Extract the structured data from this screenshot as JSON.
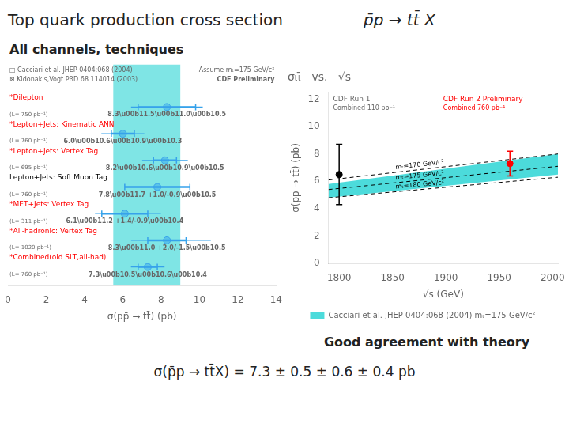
{
  "chart_data": [
    {
      "type": "scatter",
      "title": "Top quark production cross section",
      "subtitle": "All channels, techniques",
      "categories": [
        "*Dilepton",
        "*Lepton+Jets: Kinematic ANN",
        "*Lepton+Jets: Vertex Tag",
        "Lepton+Jets: Soft Muon Tag",
        "*MET+Jets: Vertex Tag",
        "*All-hadronic: Vertex Tag",
        "*Combined(old SLT,all-had)"
      ],
      "category_colors": [
        "red",
        "red",
        "red",
        "black",
        "red",
        "red",
        "red"
      ],
      "sublabels": [
        "(L= 750 pb⁻¹)",
        "(L= 760 pb⁻¹)",
        "(L= 695 pb⁻¹)",
        "(L= 760 pb⁻¹)",
        "(L= 311 pb⁻¹)",
        "(L= 1020 pb⁻¹)",
        "(L= 760 pb⁻¹)"
      ],
      "values": [
        8.3,
        6.0,
        8.2,
        7.8,
        6.1,
        8.3,
        7.3
      ],
      "value_labels": [
        "8.3\\u00b11.5\\u00b11.0\\u00b10.5",
        "6.0\\u00b10.6\\u00b10.9\\u00b10.3",
        "8.2\\u00b10.6\\u00b10.9\\u00b10.5",
        "7.8\\u00b11.7 +1.0/-0.9\\u00b10.5",
        "6.1\\u00b11.2 +1.4/-0.9\\u00b10.4",
        "8.3\\u00b11.0 +2.0/-1.5\\u00b10.5",
        "7.3\\u00b10.5\\u00b10.6\\u00b10.4"
      ],
      "stat_err": [
        1.5,
        0.6,
        0.6,
        1.7,
        1.2,
        1.0,
        0.5
      ],
      "total_err_up": [
        1.8708286933869707,
        1.1224972160321824,
        1.1916375287812984,
        2.0346989949375804,
        1.886796226411321,
        2.29128784747792,
        0.8774964387392123
      ],
      "total_err_dn": [
        1.8708286933869707,
        1.1224972160321824,
        1.1916375287812984,
        1.9874606914351791,
        1.5524174696260025,
        1.8708286933869707,
        0.8774964387392123
      ],
      "band": {
        "x": [
          5.5,
          9.0
        ],
        "color": "#00CCCC"
      },
      "xlabel": "σ(pp̄ → tt̄) (pb)",
      "xlim": [
        0,
        14
      ],
      "xticks": [
        0,
        2,
        4,
        6,
        8,
        10,
        12,
        14
      ],
      "grid": false,
      "annotations": [
        "p̄p → tt̄ X",
        "□ Cacciari et al. JHEP 0404:068 (2004)",
        "⊠ Kidonakis,Vogt PRD 68 114014 (2003)",
        "Assume mₜ=175 GeV/c²",
        "CDF Preliminary"
      ]
    },
    {
      "type": "scatter",
      "title": "σₜₜ̄   vs.   √s",
      "xlabel": "√s (GeV)",
      "ylabel": "σ(pp̄ → tt̄) (pb)",
      "xlim": [
        1790,
        2005
      ],
      "ylim": [
        0,
        12.5
      ],
      "xticks": [
        1800,
        1850,
        1900,
        1950,
        2000
      ],
      "yticks": [
        0,
        2,
        4,
        6,
        8,
        10,
        12
      ],
      "grid": false,
      "legend": "bottom",
      "band": {
        "name": "Cacciari et al. JHEP 0404:068 (2004) mₜ=175 GeV/c²",
        "x": [
          1790,
          2005
        ],
        "low": [
          4.8,
          6.5
        ],
        "high": [
          5.8,
          8.0
        ],
        "color": "#00CCCC"
      },
      "lines": [
        {
          "name": "mₜ=170 GeV/c²",
          "x": [
            1790,
            2005
          ],
          "values": [
            6.1,
            8.0
          ],
          "color": "black",
          "line_style": "dashed"
        },
        {
          "name": "mₜ=175 GeV/c²",
          "x": [
            1790,
            2005
          ],
          "values": [
            5.4,
            7.1
          ],
          "color": "black",
          "line_style": "dashed"
        },
        {
          "name": "mₜ=180 GeV/c²",
          "x": [
            1790,
            2005
          ],
          "values": [
            4.8,
            6.3
          ],
          "color": "black",
          "line_style": "dashed"
        }
      ],
      "points": [
        {
          "x": 1800,
          "y": 6.5,
          "err_up": 2.2,
          "err_dn": 2.2,
          "color": "black"
        },
        {
          "x": 1960,
          "y": 7.3,
          "err_up": 0.9,
          "err_dn": 0.9,
          "color": "red"
        }
      ],
      "annotations": [
        "CDF Run 1",
        "Combined 110 pb⁻¹",
        {
          "text": "CDF Run 2 Preliminary",
          "color": "red"
        },
        {
          "text": "Combined 760 pb⁻¹",
          "color": "red"
        },
        "Good agreement with theory",
        "σ(p̄p → tt̄X) = 7.3 ± 0.5 ± 0.6 ± 0.4 pb"
      ]
    }
  ]
}
